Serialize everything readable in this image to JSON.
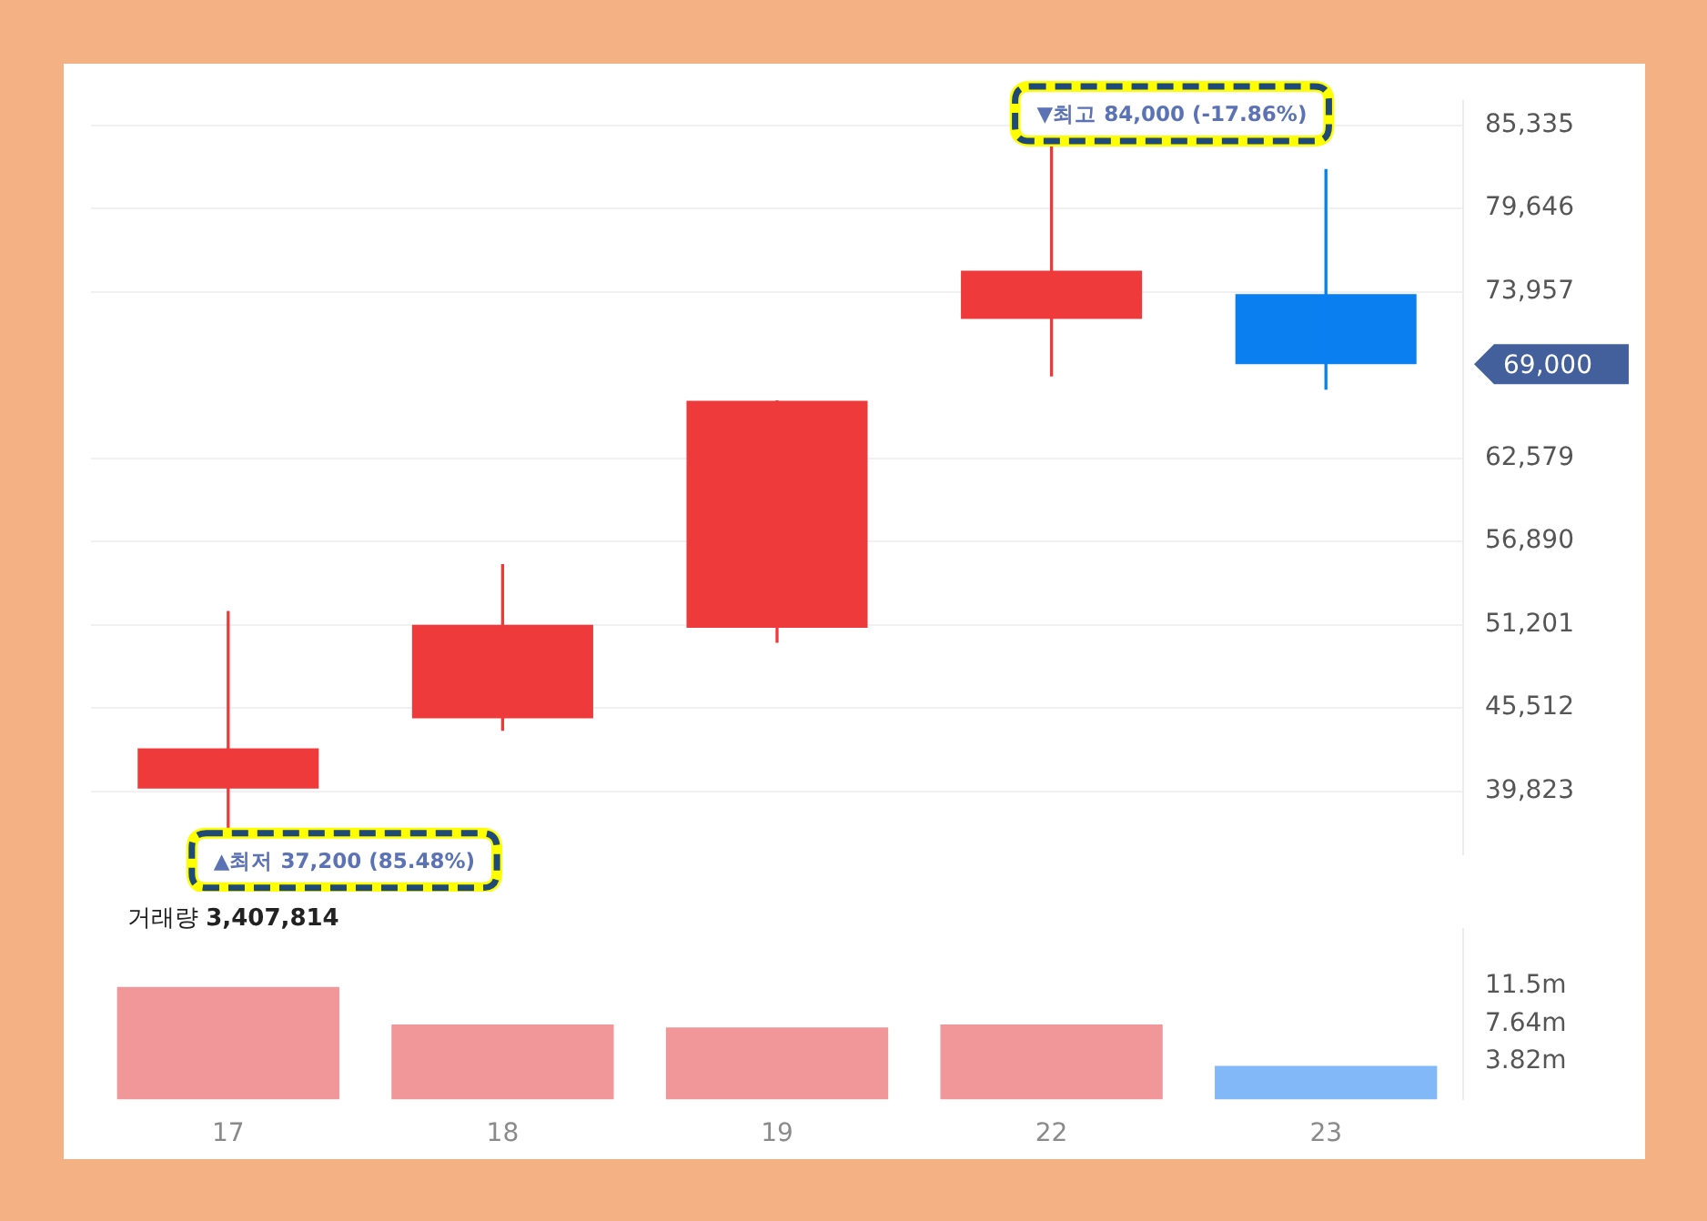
{
  "chart_data": [
    {
      "type": "candlestick",
      "categories": [
        "17",
        "18",
        "19",
        "22",
        "23"
      ],
      "ohlc": [
        [
          40000,
          52100,
          37200,
          42750
        ],
        [
          44800,
          55300,
          44000,
          51200
        ],
        [
          51000,
          66500,
          50000,
          66500
        ],
        [
          72100,
          84000,
          68200,
          75400
        ],
        [
          73800,
          82300,
          67300,
          69000
        ]
      ],
      "colors": [
        "#ef3a3c",
        "#ef3a3c",
        "#ef3a3c",
        "#ef3a3c",
        "#0a7ff0"
      ],
      "ylim": [
        35500,
        87000
      ],
      "yticks": [
        {
          "value": 39823,
          "label": "39,823"
        },
        {
          "value": 45512,
          "label": "45,512"
        },
        {
          "value": 51201,
          "label": "51,201"
        },
        {
          "value": 56890,
          "label": "56,890"
        },
        {
          "value": 62579,
          "label": "62,579"
        },
        {
          "value": 73957,
          "label": "73,957"
        },
        {
          "value": 79646,
          "label": "79,646"
        },
        {
          "value": 85335,
          "label": "85,335"
        }
      ],
      "grid": "y",
      "tick_labels": "y",
      "annotations": [
        {
          "text": "▲최저 37,200 (85.48%)",
          "x": "17",
          "y": 37200
        },
        {
          "text": "▼최고 84,000 (-17.86%)",
          "x": "22",
          "y": 84000
        },
        "69,000"
      ]
    },
    {
      "type": "bar",
      "categories": [
        "17",
        "18",
        "19",
        "22",
        "23"
      ],
      "values": [
        11.4,
        7.6,
        7.3,
        7.6,
        3.4
      ],
      "colors": [
        "#f1979a",
        "#f1979a",
        "#f1979a",
        "#f1979a",
        "#82b8f8"
      ],
      "ylim": [
        0,
        17.3
      ],
      "yticks": [
        {
          "value": 3.82,
          "label": "3.82m"
        },
        {
          "value": 7.64,
          "label": "7.64m"
        },
        {
          "value": 11.5,
          "label": "11.5m"
        }
      ],
      "annotations": [
        "거래량 3,407,814"
      ]
    }
  ]
}
